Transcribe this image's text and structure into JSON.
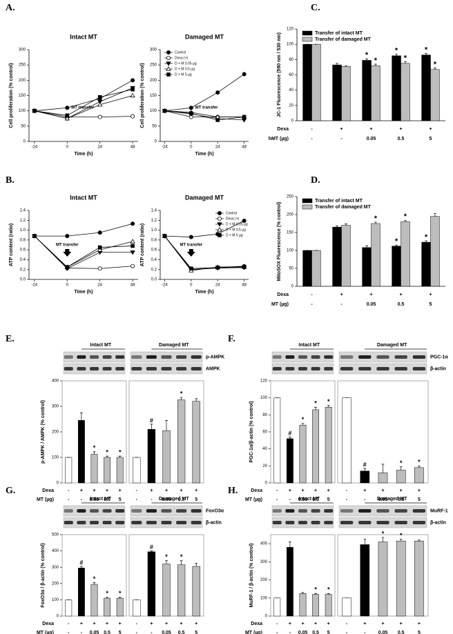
{
  "chart_data": [
    {
      "type": "line",
      "panel": "A.",
      "title": "Intact MT",
      "xlabel": "Time (h)",
      "ylabel": "Cell proliferation (% control)",
      "annotation": "MT transfer",
      "x": [
        -24,
        0,
        24,
        48
      ],
      "xlim": [
        -28,
        52
      ],
      "xticks": [
        -24,
        0,
        24,
        48
      ],
      "ylim": [
        0,
        300
      ],
      "yticks": [
        0,
        50,
        100,
        150,
        200,
        250,
        300
      ],
      "series": [
        {
          "name": "Control",
          "marker": "circle",
          "color": "#000000",
          "values": [
            100,
            110,
            140,
            200
          ]
        },
        {
          "name": "Dexa (+)",
          "marker": "circle",
          "color": "#ffffff",
          "values": [
            100,
            80,
            80,
            82
          ]
        },
        {
          "name": "D + M 0.05 µg",
          "marker": "triangle-down",
          "color": "#000000",
          "values": [
            100,
            75,
            130,
            175
          ]
        },
        {
          "name": "D + M 0.5 µg",
          "marker": "triangle-up",
          "color": "#ffffff",
          "values": [
            100,
            75,
            120,
            150
          ]
        },
        {
          "name": "D + M 5 µg",
          "marker": "square",
          "color": "#000000",
          "values": [
            100,
            85,
            145,
            170
          ]
        }
      ]
    },
    {
      "type": "line",
      "title": "Damaged MT",
      "xlabel": "Time (h)",
      "ylabel": "Cell proliferation (% control)",
      "annotation": "MT transfer",
      "legend": "upper left",
      "x": [
        -24,
        0,
        24,
        48
      ],
      "xlim": [
        -28,
        52
      ],
      "xticks": [
        -24,
        0,
        24,
        48
      ],
      "ylim": [
        0,
        300
      ],
      "yticks": [
        0,
        50,
        100,
        150,
        200,
        250,
        300
      ],
      "series": [
        {
          "name": "Control",
          "marker": "circle",
          "color": "#000000",
          "values": [
            100,
            110,
            160,
            220
          ]
        },
        {
          "name": "Dexa (+)",
          "marker": "circle",
          "color": "#ffffff",
          "values": [
            100,
            80,
            80,
            80
          ]
        },
        {
          "name": "D + M 0.05 µg",
          "marker": "triangle-down",
          "color": "#000000",
          "values": [
            100,
            90,
            75,
            70
          ]
        },
        {
          "name": "D + M 0.5 µg",
          "marker": "triangle-up",
          "color": "#ffffff",
          "values": [
            100,
            95,
            80,
            80
          ]
        },
        {
          "name": "D + M 5 µg",
          "marker": "square",
          "color": "#000000",
          "values": [
            100,
            92,
            70,
            80
          ]
        }
      ]
    },
    {
      "type": "bar",
      "panel": "C.",
      "ylabel": "JC-1 Fluorescence (590 nm / 530 nm)",
      "legend": "upper left",
      "ylim": [
        0,
        120
      ],
      "yticks": [
        0,
        20,
        40,
        60,
        80,
        100,
        120
      ],
      "series": [
        {
          "name": "Transfer of intact MT",
          "color": "#000000",
          "values": [
            100,
            73,
            79,
            85,
            86
          ],
          "errors": [
            0,
            2,
            2,
            2,
            2
          ],
          "sig": [
            null,
            null,
            "*",
            "*",
            "*"
          ]
        },
        {
          "name": "Transfer of damaged MT",
          "color": "#bdbdbd",
          "values": [
            100,
            71,
            72,
            75,
            67
          ],
          "errors": [
            0,
            1,
            2,
            2,
            2
          ],
          "sig": [
            null,
            null,
            "*",
            "*",
            "*"
          ]
        }
      ],
      "conditions": [
        {
          "label": "Dexa",
          "values": [
            "-",
            "+",
            "+",
            "+",
            "+"
          ]
        },
        {
          "label": "hMT (µg)",
          "values": [
            "-",
            "-",
            "0.05",
            "0.5",
            "5"
          ]
        }
      ]
    },
    {
      "type": "line",
      "panel": "B.",
      "title": "Intact MT",
      "xlabel": "Time (h)",
      "ylabel": "ATP content (ratio)",
      "annotation": "MT transfer",
      "x": [
        -24,
        0,
        24,
        48
      ],
      "xlim": [
        -28,
        52
      ],
      "xticks": [
        -24,
        0,
        24,
        48
      ],
      "ylim": [
        0,
        1.4
      ],
      "yticks": [
        {
          "value": 0,
          "label": "0.0"
        },
        0.2,
        0.4,
        0.6,
        0.8,
        {
          "value": 1,
          "label": "1.0"
        },
        1.2,
        1.4
      ],
      "series": [
        {
          "name": "Control",
          "marker": "circle",
          "color": "#000000",
          "values": [
            0.88,
            0.88,
            0.95,
            1.13
          ]
        },
        {
          "name": "Dexa (+)",
          "marker": "circle",
          "color": "#ffffff",
          "values": [
            0.88,
            0.23,
            0.22,
            0.27
          ]
        },
        {
          "name": "D + M 0.05 µg",
          "marker": "triangle-down",
          "color": "#000000",
          "values": [
            0.88,
            0.22,
            0.55,
            0.55
          ]
        },
        {
          "name": "D + M 0.5 µg",
          "marker": "triangle-up",
          "color": "#ffffff",
          "values": [
            0.88,
            0.25,
            0.6,
            0.77
          ]
        },
        {
          "name": "D + M 5 µg",
          "marker": "square",
          "color": "#000000",
          "values": [
            0.88,
            0.25,
            0.65,
            0.68
          ]
        }
      ]
    },
    {
      "type": "line",
      "title": "Damaged MT",
      "xlabel": "Time (h)",
      "ylabel": "ATP content (ratio)",
      "annotation": "MT transfer",
      "legend": "upper right",
      "x": [
        -24,
        0,
        24,
        48
      ],
      "xlim": [
        -28,
        52
      ],
      "xticks": [
        -24,
        0,
        24,
        48
      ],
      "ylim": [
        0,
        1.4
      ],
      "yticks": [
        {
          "value": 0,
          "label": "0.0"
        },
        0.2,
        0.4,
        0.6,
        0.8,
        {
          "value": 1,
          "label": "1.0"
        },
        1.2,
        1.4
      ],
      "series": [
        {
          "name": "Control",
          "marker": "circle",
          "color": "#000000",
          "values": [
            0.88,
            0.86,
            0.92,
            1.19
          ]
        },
        {
          "name": "Dexa (+)",
          "marker": "circle",
          "color": "#ffffff",
          "values": [
            0.88,
            0.22,
            0.24,
            0.27
          ]
        },
        {
          "name": "D + M 0.05 µg",
          "marker": "triangle-down",
          "color": "#000000",
          "values": [
            0.88,
            0.2,
            0.23,
            0.24
          ]
        },
        {
          "name": "D + M 0.5 µg",
          "marker": "triangle-up",
          "color": "#ffffff",
          "values": [
            0.88,
            0.18,
            0.25,
            0.26
          ]
        },
        {
          "name": "D + M 5 µg",
          "marker": "square",
          "color": "#000000",
          "values": [
            0.88,
            0.22,
            0.24,
            0.25
          ]
        }
      ]
    },
    {
      "type": "bar",
      "panel": "D.",
      "ylabel": "MitoSOX Fluorescence (% control)",
      "legend": "upper left",
      "ylim": [
        0,
        250
      ],
      "yticks": [
        0,
        50,
        100,
        150,
        200,
        250
      ],
      "series": [
        {
          "name": "Transfer of intact MT",
          "color": "#000000",
          "values": [
            100,
            165,
            108,
            112,
            123
          ],
          "errors": [
            0,
            3,
            5,
            3,
            4
          ],
          "sig": [
            null,
            null,
            null,
            "*",
            "*"
          ]
        },
        {
          "name": "Transfer of damaged MT",
          "color": "#bdbdbd",
          "values": [
            100,
            170,
            175,
            180,
            195
          ],
          "errors": [
            0,
            4,
            4,
            4,
            8
          ],
          "sig": [
            null,
            null,
            "*",
            "*",
            null
          ]
        }
      ],
      "conditions": [
        {
          "label": "Dexa",
          "values": [
            "-",
            "+",
            "+",
            "+",
            "+"
          ]
        },
        {
          "label": "MT (µg)",
          "values": [
            "-",
            "-",
            "0.05",
            "0.5",
            "5"
          ]
        }
      ]
    },
    {
      "type": "bar",
      "panel": "E.",
      "title": "Intact MT",
      "ylabel": "p-AMPK / AMPK (% control)",
      "ylim": [
        0,
        400
      ],
      "yticks": [
        0,
        100,
        200,
        300,
        400
      ],
      "values": [
        100,
        245,
        112,
        100,
        100
      ],
      "errors": [
        0,
        30,
        10,
        5,
        5
      ],
      "colors": [
        "#ffffff",
        "#000000",
        "#bdbdbd",
        "#bdbdbd",
        "#bdbdbd"
      ],
      "sig": [
        null,
        null,
        "*",
        "*",
        "*"
      ],
      "conditions": [
        {
          "label": "Dexa",
          "values": [
            "-",
            "+",
            "+",
            "+",
            "+"
          ]
        },
        {
          "label": "MT (µg)",
          "values": [
            "-",
            "-",
            "0.05",
            "0.5",
            "5"
          ]
        }
      ]
    },
    {
      "type": "bar",
      "title": "Damaged MT",
      "blot_labels": [
        "p-AMPK",
        "AMPK"
      ],
      "ylim": [
        0,
        400
      ],
      "values": [
        100,
        210,
        205,
        325,
        320
      ],
      "errors": [
        0,
        20,
        40,
        10,
        10
      ],
      "colors": [
        "#ffffff",
        "#000000",
        "#bdbdbd",
        "#bdbdbd",
        "#bdbdbd"
      ],
      "sig": [
        null,
        "#",
        null,
        "*",
        null
      ],
      "conditions": [
        {
          "values": [
            "-",
            "+",
            "+",
            "+",
            "+"
          ]
        },
        {
          "values": [
            "-",
            "-",
            "0.05",
            "0.5",
            "5"
          ]
        }
      ]
    },
    {
      "type": "bar",
      "panel": "F.",
      "title": "Intact MT",
      "ylabel": "PGC-1α/β-actin (% control)",
      "ylim": [
        0,
        120
      ],
      "yticks": [
        0,
        20,
        40,
        60,
        80,
        100,
        120
      ],
      "values": [
        100,
        52,
        68,
        86,
        89
      ],
      "errors": [
        0,
        2,
        2,
        3,
        2
      ],
      "colors": [
        "#ffffff",
        "#000000",
        "#bdbdbd",
        "#bdbdbd",
        "#bdbdbd"
      ],
      "sig": [
        null,
        "#",
        "*",
        "*",
        "*"
      ],
      "conditions": [
        {
          "label": "Dexa",
          "values": [
            "-",
            "+",
            "+",
            "+",
            "+"
          ]
        },
        {
          "label": "MT (µg)",
          "values": [
            "-",
            "-",
            "0.05",
            "0.5",
            "5"
          ]
        }
      ]
    },
    {
      "type": "bar",
      "title": "Damaged MT",
      "blot_labels": [
        "PGC-1α",
        "β-actin"
      ],
      "ylim": [
        0,
        120
      ],
      "values": [
        100,
        14,
        12,
        15,
        18
      ],
      "errors": [
        0,
        3,
        10,
        4,
        2
      ],
      "colors": [
        "#ffffff",
        "#000000",
        "#bdbdbd",
        "#bdbdbd",
        "#bdbdbd"
      ],
      "sig": [
        null,
        "#",
        null,
        "*",
        "*"
      ],
      "conditions": [
        {
          "values": [
            "-",
            "+",
            "+",
            "+",
            "+"
          ]
        },
        {
          "values": [
            "-",
            "-",
            "0.05",
            "0.5",
            "5"
          ]
        }
      ]
    },
    {
      "type": "bar",
      "panel": "G.",
      "title": "Intact MT",
      "ylabel": "FoxO3α / β-actin (% control)",
      "ylim": [
        0,
        500
      ],
      "yticks": [
        0,
        100,
        200,
        300,
        400,
        500
      ],
      "values": [
        100,
        295,
        195,
        110,
        110
      ],
      "errors": [
        0,
        10,
        10,
        5,
        5
      ],
      "colors": [
        "#ffffff",
        "#000000",
        "#bdbdbd",
        "#bdbdbd",
        "#bdbdbd"
      ],
      "sig": [
        null,
        "#",
        "*",
        "*",
        "*"
      ],
      "conditions": [
        {
          "label": "Dexa",
          "values": [
            "-",
            "+",
            "+",
            "+",
            "+"
          ]
        },
        {
          "label": "MT (µg)",
          "values": [
            "-",
            "-",
            "0.05",
            "0.5",
            "5"
          ]
        }
      ]
    },
    {
      "type": "bar",
      "title": "Damaged MT",
      "blot_labels": [
        "FoxO3α",
        "β-actin"
      ],
      "ylim": [
        0,
        500
      ],
      "values": [
        100,
        395,
        320,
        315,
        305
      ],
      "errors": [
        0,
        5,
        20,
        25,
        20
      ],
      "colors": [
        "#ffffff",
        "#000000",
        "#bdbdbd",
        "#bdbdbd",
        "#bdbdbd"
      ],
      "sig": [
        null,
        "#",
        "*",
        "*",
        null
      ],
      "conditions": [
        {
          "values": [
            "-",
            "+",
            "+",
            "+",
            "+"
          ]
        },
        {
          "values": [
            "-",
            "-",
            "0.05",
            "0.5",
            "5"
          ]
        }
      ]
    },
    {
      "type": "bar",
      "panel": "H.",
      "title": "Intact MT",
      "ylabel": "MuRF-1 / β-actin (% control)",
      "ylim": [
        0,
        450
      ],
      "yticks": [
        0,
        100,
        200,
        300,
        400
      ],
      "values": [
        100,
        380,
        125,
        120,
        120
      ],
      "errors": [
        0,
        30,
        5,
        5,
        5
      ],
      "colors": [
        "#ffffff",
        "#000000",
        "#bdbdbd",
        "#bdbdbd",
        "#bdbdbd"
      ],
      "sig": [
        null,
        null,
        null,
        "*",
        "*"
      ],
      "conditions": [
        {
          "label": "Dexa",
          "values": [
            "-",
            "+",
            "+",
            "+",
            "+"
          ]
        },
        {
          "label": "MT (µg)",
          "values": [
            "-",
            "-",
            "0.05",
            "0.5",
            "5"
          ]
        }
      ]
    },
    {
      "type": "bar",
      "title": "Damaged MT",
      "blot_labels": [
        "MuRF-1",
        "β-actin"
      ],
      "ylim": [
        0,
        450
      ],
      "values": [
        100,
        395,
        410,
        415,
        415
      ],
      "errors": [
        0,
        30,
        25,
        10,
        5
      ],
      "colors": [
        "#ffffff",
        "#000000",
        "#bdbdbd",
        "#bdbdbd",
        "#bdbdbd"
      ],
      "sig": [
        null,
        null,
        "*",
        "*",
        null
      ],
      "conditions": [
        {
          "values": [
            "-",
            "+",
            "+",
            "+",
            "+"
          ]
        },
        {
          "values": [
            "-",
            "-",
            "0.05",
            "0.5",
            "5"
          ]
        }
      ]
    }
  ]
}
